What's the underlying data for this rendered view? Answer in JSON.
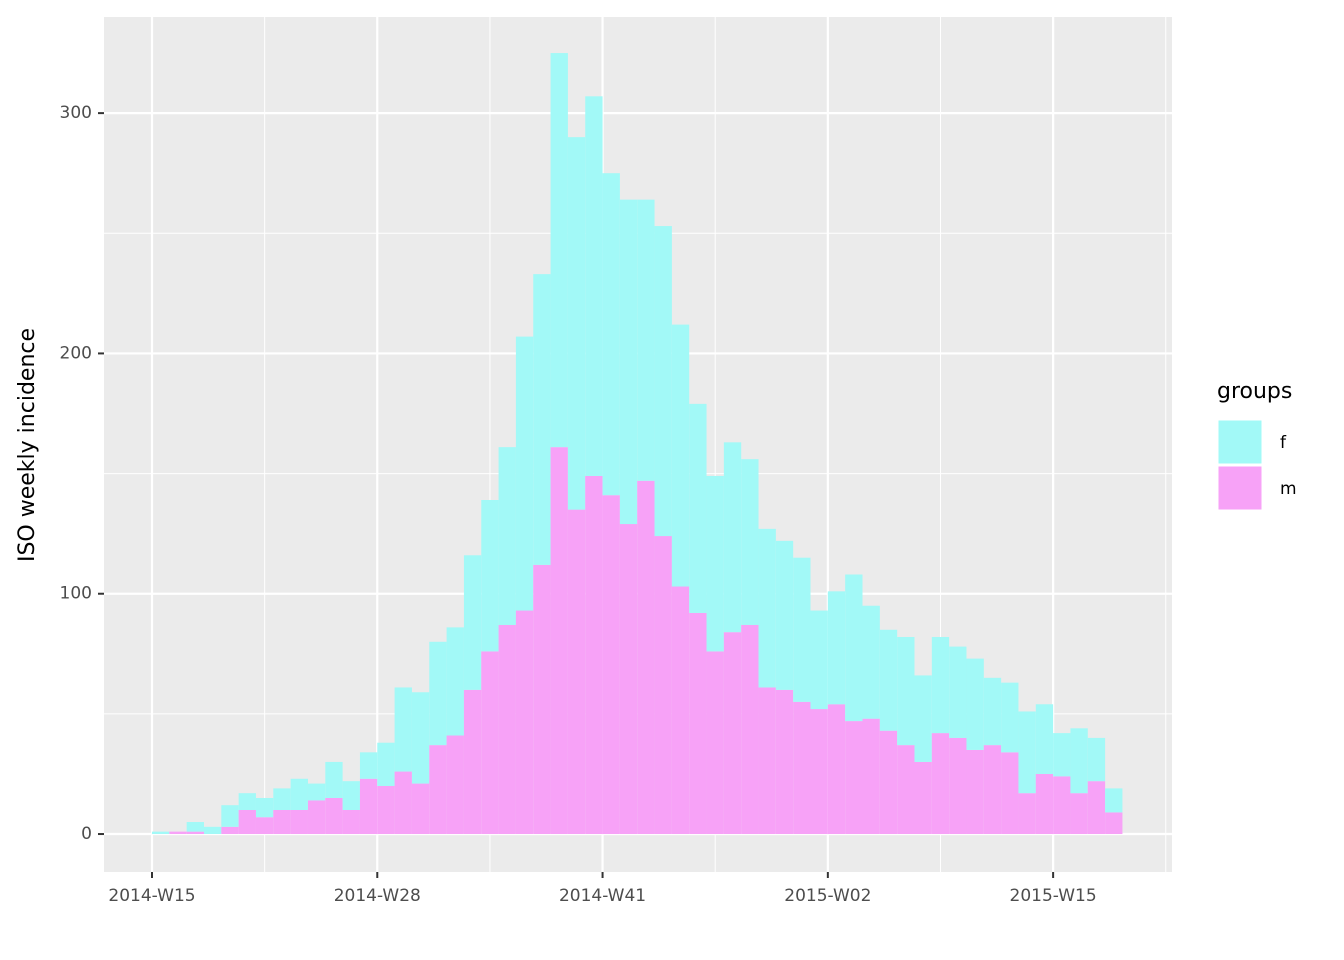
{
  "chart_data": {
    "type": "histogram",
    "y_label": "ISO weekly incidence",
    "legend_title": "groups",
    "bins": [
      0,
      1,
      2,
      3,
      4,
      5,
      6,
      7,
      8,
      9,
      10,
      11,
      12,
      13,
      14,
      15,
      16,
      17,
      18,
      19,
      20,
      21,
      22,
      23,
      24,
      25,
      26,
      27,
      28,
      29,
      30,
      31,
      32,
      33,
      34,
      35,
      36,
      37,
      38,
      39,
      40,
      41,
      42,
      43,
      44,
      45,
      46,
      47,
      48,
      49,
      50,
      51,
      52,
      53,
      54,
      55,
      56
    ],
    "series": [
      {
        "name": "f",
        "color": "#a2f9f7",
        "values": [
          1,
          0,
          4,
          3,
          9,
          7,
          8,
          9,
          13,
          7,
          15,
          12,
          11,
          18,
          35,
          38,
          43,
          45,
          56,
          63,
          74,
          114,
          121,
          164,
          155,
          158,
          134,
          135,
          117,
          129,
          109,
          87,
          73,
          79,
          69,
          66,
          62,
          60,
          41,
          47,
          61,
          47,
          42,
          45,
          36,
          40,
          38,
          38,
          28,
          29,
          34,
          29,
          18,
          27,
          18,
          10
        ]
      },
      {
        "name": "m",
        "color": "#f7a2f7",
        "values": [
          0,
          1,
          1,
          0,
          3,
          10,
          7,
          10,
          10,
          14,
          15,
          10,
          23,
          20,
          26,
          21,
          37,
          41,
          60,
          76,
          87,
          93,
          112,
          161,
          135,
          149,
          141,
          129,
          147,
          124,
          103,
          92,
          76,
          84,
          87,
          61,
          60,
          55,
          52,
          54,
          47,
          48,
          43,
          37,
          30,
          42,
          40,
          35,
          37,
          34,
          17,
          25,
          24,
          17,
          22,
          9
        ]
      }
    ],
    "xlim": [
      -2.77,
      58.86
    ],
    "xticks": [
      {
        "value": 0,
        "label": "2014-W15"
      },
      {
        "value": 13,
        "label": "2014-W28"
      },
      {
        "value": 26,
        "label": "2014-W41"
      },
      {
        "value": 39,
        "label": "2015-W02"
      },
      {
        "value": 52,
        "label": "2015-W15"
      }
    ],
    "ylim": [
      -15.8,
      340
    ],
    "yticks": [
      0,
      100,
      200,
      300
    ],
    "grid": true
  }
}
